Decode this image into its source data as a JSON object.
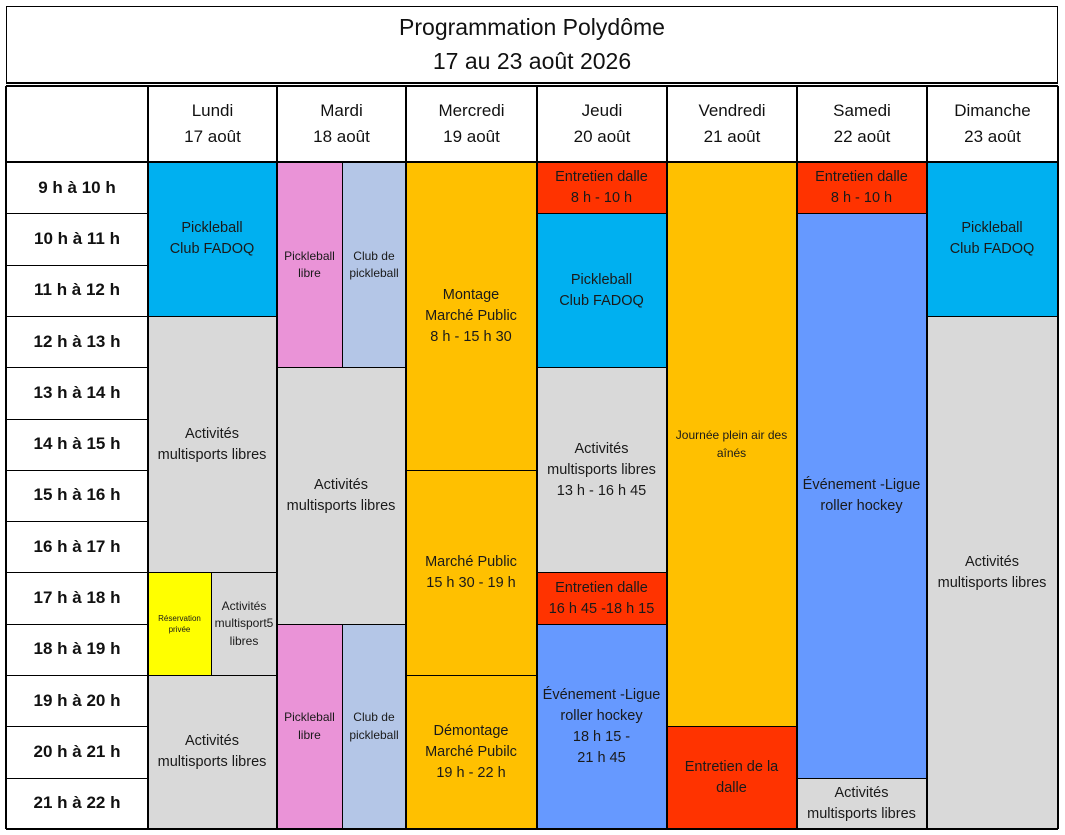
{
  "title": {
    "line1": "Programmation Polydôme",
    "line2": "17 au 23 août 2026"
  },
  "days": [
    {
      "name": "Lundi",
      "date": "17 août"
    },
    {
      "name": "Mardi",
      "date": "18 août"
    },
    {
      "name": "Mercredi",
      "date": "19 août"
    },
    {
      "name": "Jeudi",
      "date": "20 août"
    },
    {
      "name": "Vendredi",
      "date": "21 août"
    },
    {
      "name": "Samedi",
      "date": "22 août"
    },
    {
      "name": "Dimanche",
      "date": "23 août"
    }
  ],
  "times": [
    "9 h à 10 h",
    "10 h à 11 h",
    "11 h à 12 h",
    "12 h à 13 h",
    "13 h à 14 h",
    "14 h à 15 h",
    "15 h à 16 h",
    "16 h à 17 h",
    "17 h à 18 h",
    "18 h à 19 h",
    "19 h à 20 h",
    "20 h à 21 h",
    "21 h à 22 h"
  ],
  "colors": {
    "blue": "#00b0f0",
    "gray": "#d9d9d9",
    "pink": "#ea93d7",
    "lavender": "#b4c6e7",
    "orange": "#ffc000",
    "red": "#ff3300",
    "periwinkle": "#6699ff",
    "yellow": "#ffff00"
  },
  "events": [
    {
      "day": 0,
      "start": 0,
      "end": 3,
      "color": "blue",
      "text": "Pickleball\nClub FADOQ"
    },
    {
      "day": 0,
      "start": 3,
      "end": 8,
      "color": "gray",
      "text": "Activités\nmultisports libres"
    },
    {
      "day": 0,
      "start": 8,
      "end": 10,
      "sub": 0,
      "color": "yellow",
      "size": "tiny",
      "text": "Réservation\nprivée"
    },
    {
      "day": 0,
      "start": 8,
      "end": 10,
      "sub": 1,
      "color": "gray",
      "size": "small",
      "text": "Activités\nmultisport5\nlibres"
    },
    {
      "day": 0,
      "start": 10,
      "end": 13,
      "color": "gray",
      "text": "Activités\nmultisports libres"
    },
    {
      "day": 1,
      "start": 0,
      "end": 4,
      "sub": 0,
      "color": "pink",
      "size": "small",
      "text": "Pickleball\nlibre"
    },
    {
      "day": 1,
      "start": 0,
      "end": 4,
      "sub": 1,
      "color": "lavender",
      "size": "small",
      "text": "Club de\npickleball"
    },
    {
      "day": 1,
      "start": 4,
      "end": 9,
      "color": "gray",
      "text": "Activités\nmultisports libres"
    },
    {
      "day": 1,
      "start": 9,
      "end": 13,
      "sub": 0,
      "color": "pink",
      "size": "small",
      "text": "Pickleball\nlibre"
    },
    {
      "day": 1,
      "start": 9,
      "end": 13,
      "sub": 1,
      "color": "lavender",
      "size": "small",
      "text": "Club de\npickleball"
    },
    {
      "day": 2,
      "start": 0,
      "end": 6,
      "color": "orange",
      "text": "Montage\nMarché Public\n8 h - 15 h 30"
    },
    {
      "day": 2,
      "start": 6,
      "end": 10,
      "color": "orange",
      "text": "Marché Public\n15 h 30 - 19 h"
    },
    {
      "day": 2,
      "start": 10,
      "end": 13,
      "color": "orange",
      "text": "Démontage\nMarché Pubilc\n19 h - 22 h"
    },
    {
      "day": 3,
      "start": 0,
      "end": 1,
      "color": "red",
      "text": "Entretien dalle\n8 h - 10 h"
    },
    {
      "day": 3,
      "start": 1,
      "end": 4,
      "color": "blue",
      "text": "Pickleball\nClub FADOQ"
    },
    {
      "day": 3,
      "start": 4,
      "end": 8,
      "color": "gray",
      "text": "Activités\nmultisports libres\n13 h - 16 h 45"
    },
    {
      "day": 3,
      "start": 8,
      "end": 9,
      "color": "red",
      "text": "Entretien dalle\n16 h 45 -18 h 15"
    },
    {
      "day": 3,
      "start": 9,
      "end": 13,
      "color": "periwinkle",
      "text": "Événement -Ligue\nroller hockey\n18 h 15  -\n21 h 45"
    },
    {
      "day": 4,
      "start": 0,
      "end": 11,
      "color": "orange",
      "size": "small",
      "text": "Journée plein air des\naînés"
    },
    {
      "day": 4,
      "start": 11,
      "end": 13,
      "color": "red",
      "text": "Entretien de la\ndalle"
    },
    {
      "day": 5,
      "start": 0,
      "end": 1,
      "color": "red",
      "text": "Entretien dalle\n8 h - 10 h"
    },
    {
      "day": 5,
      "start": 1,
      "end": 12,
      "color": "periwinkle",
      "text": "Événement -Ligue\nroller hockey"
    },
    {
      "day": 5,
      "start": 12,
      "end": 13,
      "color": "gray",
      "text": "Activités\nmultisports libres"
    },
    {
      "day": 6,
      "start": 0,
      "end": 3,
      "color": "blue",
      "text": "Pickleball\nClub FADOQ"
    },
    {
      "day": 6,
      "start": 3,
      "end": 13,
      "color": "gray",
      "text": "Activités\nmultisports libres"
    }
  ]
}
